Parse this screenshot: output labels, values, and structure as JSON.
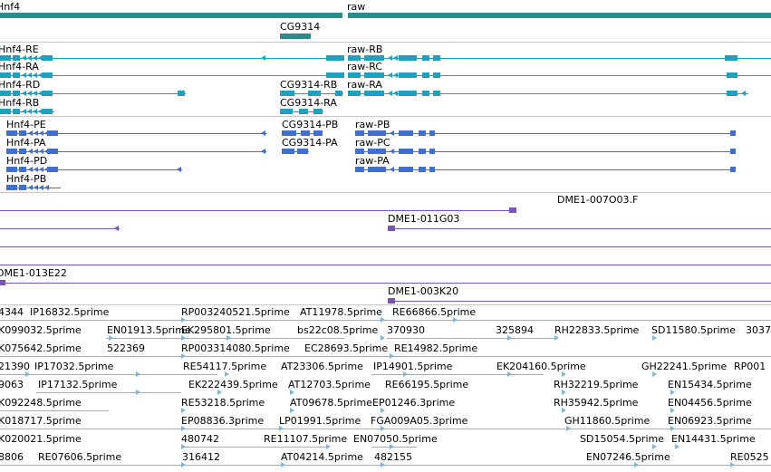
{
  "colors": {
    "gene": "#2e8b8b",
    "transcript_rna": "#20a0bf",
    "transcript_protein": "#3f6fcf",
    "clone": "#7a55b2",
    "est": "#7fb5dd",
    "separator": "#c8c8c8"
  },
  "genes": {
    "hnf4": "Hnf4",
    "raw": "raw",
    "cg9314": "CG9314"
  },
  "rna": {
    "hnf4_re": "Hnf4-RE",
    "hnf4_ra": "Hnf4-RA",
    "hnf4_rd": "Hnf4-RD",
    "hnf4_rb": "Hnf4-RB",
    "raw_rb": "raw-RB",
    "raw_rc": "raw-RC",
    "raw_ra": "raw-RA",
    "cg9314_rb": "CG9314-RB",
    "cg9314_ra": "CG9314-RA"
  },
  "protein": {
    "hnf4_pe": "Hnf4-PE",
    "hnf4_pa": "Hnf4-PA",
    "hnf4_pd": "Hnf4-PD",
    "hnf4_pb": "Hnf4-PB",
    "cg9314_pb": "CG9314-PB",
    "cg9314_pa": "CG9314-PA",
    "raw_pb": "raw-PB",
    "raw_pc": "raw-PC",
    "raw_pa": "raw-PA"
  },
  "clones": {
    "c1": "DME1-007O03.F",
    "c2": "DME1-011G03",
    "c3": "DME1-013E22",
    "c4": "DME1-003K20"
  },
  "ests": [
    [
      "4344",
      "IP16832.5prime",
      "RP003240521.5prime",
      "AT11978.5prime",
      "RE66866.5prime"
    ],
    [
      "K099032.5prime",
      "EN01913.5prime",
      "EK295801.5prime",
      "bs22c08.5prime",
      "370930",
      "325894",
      "RH22833.5prime",
      "SD11580.5prime",
      "3037"
    ],
    [
      "K075642.5prime",
      "522369",
      "RP003314080.5prime",
      "EC28693.5prime",
      "RE14982.5prime"
    ],
    [
      "21390",
      "IP17032.5prime",
      "RE54117.5prime",
      "AT23306.5prime",
      "IP14901.5prime",
      "EK204160.5prime",
      "GH22241.5prime",
      "RP001"
    ],
    [
      "9063",
      "IP17132.5prime",
      "EK222439.5prime",
      "AT12703.5prime",
      "RE66195.5prime",
      "RH32219.5prime",
      "EN15434.5prime"
    ],
    [
      "K092248.5prime",
      "RE53218.5prime",
      "AT09678.5prime",
      "EP01246.3prime",
      "RH35942.5prime",
      "EN04456.5prime"
    ],
    [
      "K018717.5prime",
      "EP08836.3prime",
      "LP01991.5prime",
      "FGA009A05.3prime",
      "GH11860.5prime",
      "EN06923.5prime"
    ],
    [
      "K020021.5prime",
      "480742",
      "RE11107.5prime",
      "EN07050.5prime",
      "SD15054.5prime",
      "EN14431.5prime"
    ],
    [
      "8806",
      "RE07606.5prime",
      "316412",
      "AT04214.5prime",
      "482155",
      "EN07246.5prime",
      "RE0525"
    ]
  ]
}
